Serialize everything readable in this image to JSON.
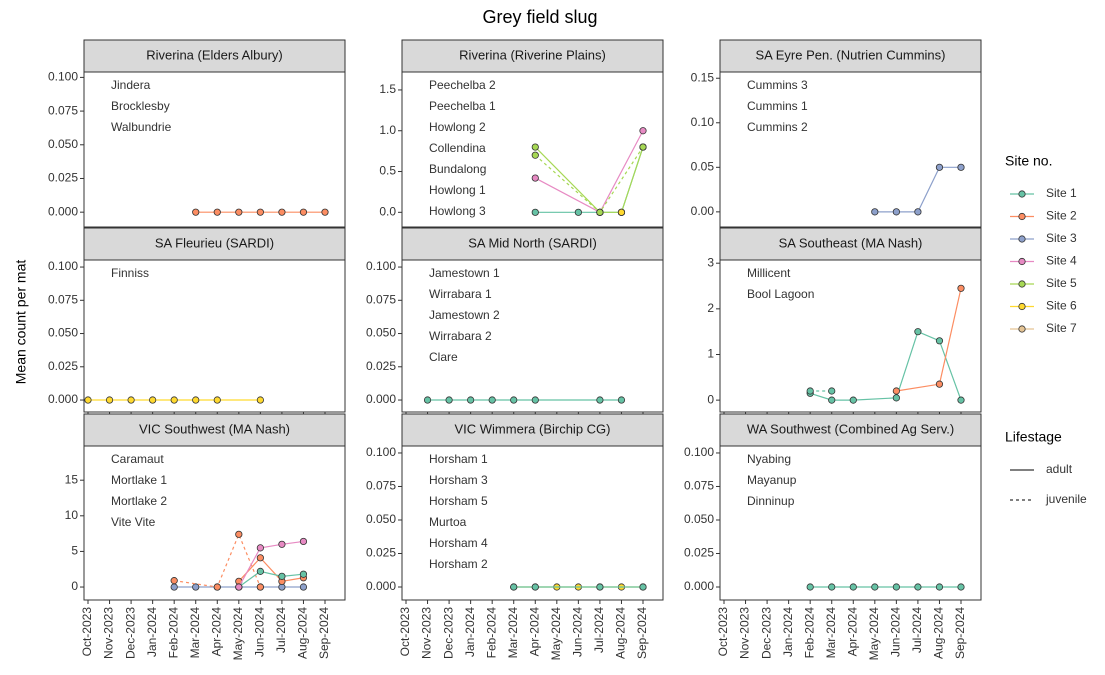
{
  "title": "Grey field slug",
  "y_label": "Mean count per mat",
  "xticks": [
    "Oct-2023",
    "Nov-2023",
    "Dec-2023",
    "Jan-2024",
    "Feb-2024",
    "Mar-2024",
    "Apr-2024",
    "May-2024",
    "Jun-2024",
    "Jul-2024",
    "Aug-2024",
    "Sep-2024"
  ],
  "legend": {
    "title": "Site no.",
    "items": [
      {
        "name": "Site 1",
        "color": "#66c2a5"
      },
      {
        "name": "Site 2",
        "color": "#fc8d62"
      },
      {
        "name": "Site 3",
        "color": "#8da0cb"
      },
      {
        "name": "Site 4",
        "color": "#e78ac3"
      },
      {
        "name": "Site 5",
        "color": "#a6d854"
      },
      {
        "name": "Site 6",
        "color": "#ffd92f"
      },
      {
        "name": "Site 7",
        "color": "#e5c494"
      }
    ],
    "lifestage_title": "Lifestage",
    "lifestages": [
      "adult",
      "juvenile"
    ]
  },
  "chart_data": [
    {
      "type": "line",
      "title": "Riverina (Elders Albury)",
      "ylim": [
        -0.011,
        0.104
      ],
      "yticks": [
        {
          "value": 0,
          "label": "0.000"
        },
        0.025,
        {
          "value": 0.05,
          "label": "0.050"
        },
        0.075,
        {
          "value": 0.1,
          "label": "0.100"
        }
      ],
      "annotations": [
        {
          "text": "Jindera",
          "color": "#66c2a5"
        },
        {
          "text": "Brocklesby",
          "color": "#8da0cb"
        },
        {
          "text": "Walbundrie",
          "color": "#fc8d62"
        }
      ],
      "series": [
        {
          "lifestage": "adult",
          "color": "#fc8d62",
          "x": [
            "Mar-2024",
            "Apr-2024",
            "May-2024",
            "Jun-2024",
            "Jul-2024",
            "Aug-2024",
            "Sep-2024"
          ],
          "values": [
            0,
            0,
            0,
            0,
            0,
            0,
            0
          ]
        }
      ]
    },
    {
      "type": "line",
      "title": "Riverina (Riverine Plains)",
      "ylim": [
        -0.18,
        1.72
      ],
      "yticks": [
        {
          "value": 0,
          "label": "0.0"
        },
        0.5,
        {
          "value": 1,
          "label": "1.0"
        },
        1.5
      ],
      "annotations": [
        {
          "text": "Peechelba 2",
          "color": "#a6d854"
        },
        {
          "text": "Peechelba 1",
          "color": "#e78ac3"
        },
        {
          "text": "Howlong 2",
          "color": "#fc8d62"
        },
        {
          "text": "Collendina",
          "color": "#ffd92f"
        },
        {
          "text": "Bundalong",
          "color": "#e5c494"
        },
        {
          "text": "Howlong 1",
          "color": "#66c2a5"
        },
        {
          "text": "Howlong 3",
          "color": "#8da0cb"
        }
      ],
      "series": [
        {
          "lifestage": "adult",
          "color": "#66c2a5",
          "x": [
            "Apr-2024",
            "Jun-2024",
            "Jul-2024",
            "Aug-2024",
            "Sep-2024"
          ],
          "values": [
            0,
            0,
            0,
            0,
            0.8
          ]
        },
        {
          "lifestage": "adult",
          "color": "#e78ac3",
          "x": [
            "Apr-2024",
            "Jul-2024",
            "Sep-2024"
          ],
          "values": [
            0.42,
            0,
            1.0
          ]
        },
        {
          "lifestage": "adult",
          "color": "#a6d854",
          "x": [
            "Apr-2024",
            "Jul-2024",
            "Aug-2024",
            "Sep-2024"
          ],
          "values": [
            0.8,
            0,
            0,
            0.8
          ]
        },
        {
          "lifestage": "juvenile",
          "color": "#a6d854",
          "x": [
            "Apr-2024",
            "Jul-2024",
            "Sep-2024"
          ],
          "values": [
            0.7,
            0,
            0.8
          ]
        },
        {
          "lifestage": "adult",
          "color": "#ffd92f",
          "x": [
            "Aug-2024"
          ],
          "values": [
            0
          ]
        }
      ]
    },
    {
      "type": "line",
      "title": "SA Eyre Pen. (Nutrien Cummins)",
      "ylim": [
        -0.017,
        0.157
      ],
      "yticks": [
        {
          "value": 0,
          "label": "0.00"
        },
        0.05,
        {
          "value": 0.1,
          "label": "0.10"
        },
        0.15
      ],
      "annotations": [
        {
          "text": "Cummins 3",
          "color": "#8da0cb"
        },
        {
          "text": "Cummins 1",
          "color": "#66c2a5"
        },
        {
          "text": "Cummins 2",
          "color": "#fc8d62"
        }
      ],
      "series": [
        {
          "lifestage": "adult",
          "color": "#8da0cb",
          "x": [
            "May-2024",
            "Jun-2024",
            "Jul-2024",
            "Aug-2024",
            "Sep-2024"
          ],
          "values": [
            0,
            0,
            0,
            0.05,
            0.05
          ]
        }
      ]
    },
    {
      "type": "line",
      "title": "SA Fleurieu (SARDI)",
      "ylim": [
        -0.009,
        0.1053
      ],
      "yticks": [
        {
          "value": 0,
          "label": "0.000"
        },
        0.025,
        {
          "value": 0.05,
          "label": "0.050"
        },
        0.075,
        {
          "value": 0.1,
          "label": "0.100"
        }
      ],
      "annotations": [
        {
          "text": "Finniss",
          "color": "#ffd92f"
        }
      ],
      "series": [
        {
          "lifestage": "adult",
          "color": "#ffd92f",
          "x": [
            "Oct-2023",
            "Nov-2023",
            "Dec-2023",
            "Jan-2024",
            "Feb-2024",
            "Mar-2024",
            "Apr-2024",
            "Jun-2024"
          ],
          "values": [
            0,
            0,
            0,
            0,
            0,
            0,
            0,
            0
          ]
        }
      ]
    },
    {
      "type": "line",
      "title": "SA Mid North (SARDI)",
      "ylim": [
        -0.009,
        0.1053
      ],
      "yticks": [
        {
          "value": 0,
          "label": "0.000"
        },
        0.025,
        {
          "value": 0.05,
          "label": "0.050"
        },
        0.075,
        {
          "value": 0.1,
          "label": "0.100"
        }
      ],
      "annotations": [
        {
          "text": "Jamestown 1",
          "color": "#66c2a5"
        },
        {
          "text": "Wirrabara 1",
          "color": "#8da0cb"
        },
        {
          "text": "Jamestown 2",
          "color": "#fc8d62"
        },
        {
          "text": "Wirrabara 2",
          "color": "#e78ac3"
        },
        {
          "text": "Clare",
          "color": "#a6d854"
        }
      ],
      "series": [
        {
          "lifestage": "adult",
          "color": "#66c2a5",
          "x": [
            "Nov-2023",
            "Dec-2023",
            "Jan-2024",
            "Feb-2024",
            "Mar-2024",
            "Apr-2024",
            "Jul-2024",
            "Aug-2024"
          ],
          "values": [
            0,
            0,
            0,
            0,
            0,
            0,
            0,
            0
          ]
        }
      ]
    },
    {
      "type": "line",
      "title": "SA Southeast (MA Nash)",
      "ylim": [
        -0.26,
        3.07
      ],
      "yticks": [
        0,
        1,
        2,
        3
      ],
      "annotations": [
        {
          "text": "Millicent",
          "color": "#66c2a5"
        },
        {
          "text": "Bool Lagoon",
          "color": "#fc8d62"
        }
      ],
      "series": [
        {
          "lifestage": "adult",
          "color": "#66c2a5",
          "x": [
            "Feb-2024",
            "Mar-2024",
            "Apr-2024",
            "Jun-2024",
            "Jul-2024",
            "Aug-2024",
            "Sep-2024"
          ],
          "values": [
            0.15,
            0,
            0,
            0.05,
            1.5,
            1.3,
            0
          ]
        },
        {
          "lifestage": "juvenile",
          "color": "#66c2a5",
          "x": [
            "Feb-2024",
            "Mar-2024"
          ],
          "values": [
            0.2,
            0.2
          ]
        },
        {
          "lifestage": "adult",
          "color": "#fc8d62",
          "x": [
            "Jun-2024",
            "Aug-2024",
            "Sep-2024"
          ],
          "values": [
            0.2,
            0.35,
            2.45
          ]
        }
      ]
    },
    {
      "type": "line",
      "title": "VIC Southwest (MA Nash)",
      "ylim": [
        -1.82,
        19.8
      ],
      "yticks": [
        0,
        5,
        10,
        15
      ],
      "annotations": [
        {
          "text": "Caramaut",
          "color": "#e78ac3"
        },
        {
          "text": "Mortlake 1",
          "color": "#66c2a5"
        },
        {
          "text": "Mortlake 2",
          "color": "#fc8d62"
        },
        {
          "text": "Vite Vite",
          "color": "#8da0cb"
        }
      ],
      "series": [
        {
          "lifestage": "adult",
          "color": "#8da0cb",
          "x": [
            "Feb-2024",
            "Mar-2024",
            "Apr-2024",
            "May-2024",
            "Jun-2024",
            "Jul-2024",
            "Aug-2024"
          ],
          "values": [
            0,
            0,
            0,
            0,
            0,
            0,
            0
          ]
        },
        {
          "lifestage": "juvenile",
          "color": "#fc8d62",
          "x": [
            "Feb-2024",
            "Apr-2024",
            "May-2024",
            "Jun-2024"
          ],
          "values": [
            0.9,
            0,
            7.4,
            0
          ]
        },
        {
          "lifestage": "adult",
          "color": "#fc8d62",
          "x": [
            "May-2024",
            "Jun-2024",
            "Jul-2024",
            "Aug-2024"
          ],
          "values": [
            0.8,
            4.1,
            0.8,
            1.3
          ]
        },
        {
          "lifestage": "adult",
          "color": "#66c2a5",
          "x": [
            "May-2024",
            "Jun-2024",
            "Jul-2024",
            "Aug-2024"
          ],
          "values": [
            0,
            2.2,
            1.5,
            1.8
          ]
        },
        {
          "lifestage": "adult",
          "color": "#e78ac3",
          "x": [
            "May-2024",
            "Jun-2024",
            "Jul-2024",
            "Aug-2024"
          ],
          "values": [
            0,
            5.5,
            6,
            6.4
          ]
        }
      ]
    },
    {
      "type": "line",
      "title": "VIC Wimmera (Birchip CG)",
      "ylim": [
        -0.0097,
        0.1052
      ],
      "yticks": [
        {
          "value": 0,
          "label": "0.000"
        },
        0.025,
        {
          "value": 0.05,
          "label": "0.050"
        },
        0.075,
        {
          "value": 0.1,
          "label": "0.100"
        }
      ],
      "annotations": [
        {
          "text": "Horsham 1",
          "color": "#fc8d62"
        },
        {
          "text": "Horsham 3",
          "color": "#e78ac3"
        },
        {
          "text": "Horsham 5",
          "color": "#ffd92f"
        },
        {
          "text": "Murtoa",
          "color": "#66c2a5"
        },
        {
          "text": "Horsham 4",
          "color": "#a6d854"
        },
        {
          "text": "Horsham 2",
          "color": "#8da0cb"
        }
      ],
      "series": [
        {
          "lifestage": "adult",
          "color": "#ffd92f",
          "x": [
            "Mar-2024",
            "Apr-2024",
            "May-2024",
            "Jun-2024",
            "Jul-2024",
            "Aug-2024",
            "Sep-2024"
          ],
          "values": [
            0,
            0,
            0,
            0,
            0,
            0,
            0
          ]
        },
        {
          "lifestage": "adult",
          "color": "#66c2a5",
          "x": [
            "Mar-2024",
            "Apr-2024",
            "Jul-2024",
            "Sep-2024"
          ],
          "values": [
            0,
            0,
            0,
            0
          ]
        }
      ]
    },
    {
      "type": "line",
      "title": "WA Southwest (Combined Ag Serv.)",
      "ylim": [
        -0.0097,
        0.1052
      ],
      "yticks": [
        {
          "value": 0,
          "label": "0.000"
        },
        0.025,
        {
          "value": 0.05,
          "label": "0.050"
        },
        0.075,
        {
          "value": 0.1,
          "label": "0.100"
        }
      ],
      "annotations": [
        {
          "text": "Nyabing",
          "color": "#66c2a5"
        },
        {
          "text": "Mayanup",
          "color": "#8da0cb"
        },
        {
          "text": "Dinninup",
          "color": "#fc8d62"
        }
      ],
      "series": [
        {
          "lifestage": "adult",
          "color": "#66c2a5",
          "x": [
            "Feb-2024",
            "Mar-2024",
            "Apr-2024",
            "May-2024",
            "Jun-2024",
            "Jul-2024",
            "Aug-2024",
            "Sep-2024"
          ],
          "values": [
            0,
            0,
            0,
            0,
            0,
            0,
            0,
            0
          ]
        }
      ]
    }
  ]
}
